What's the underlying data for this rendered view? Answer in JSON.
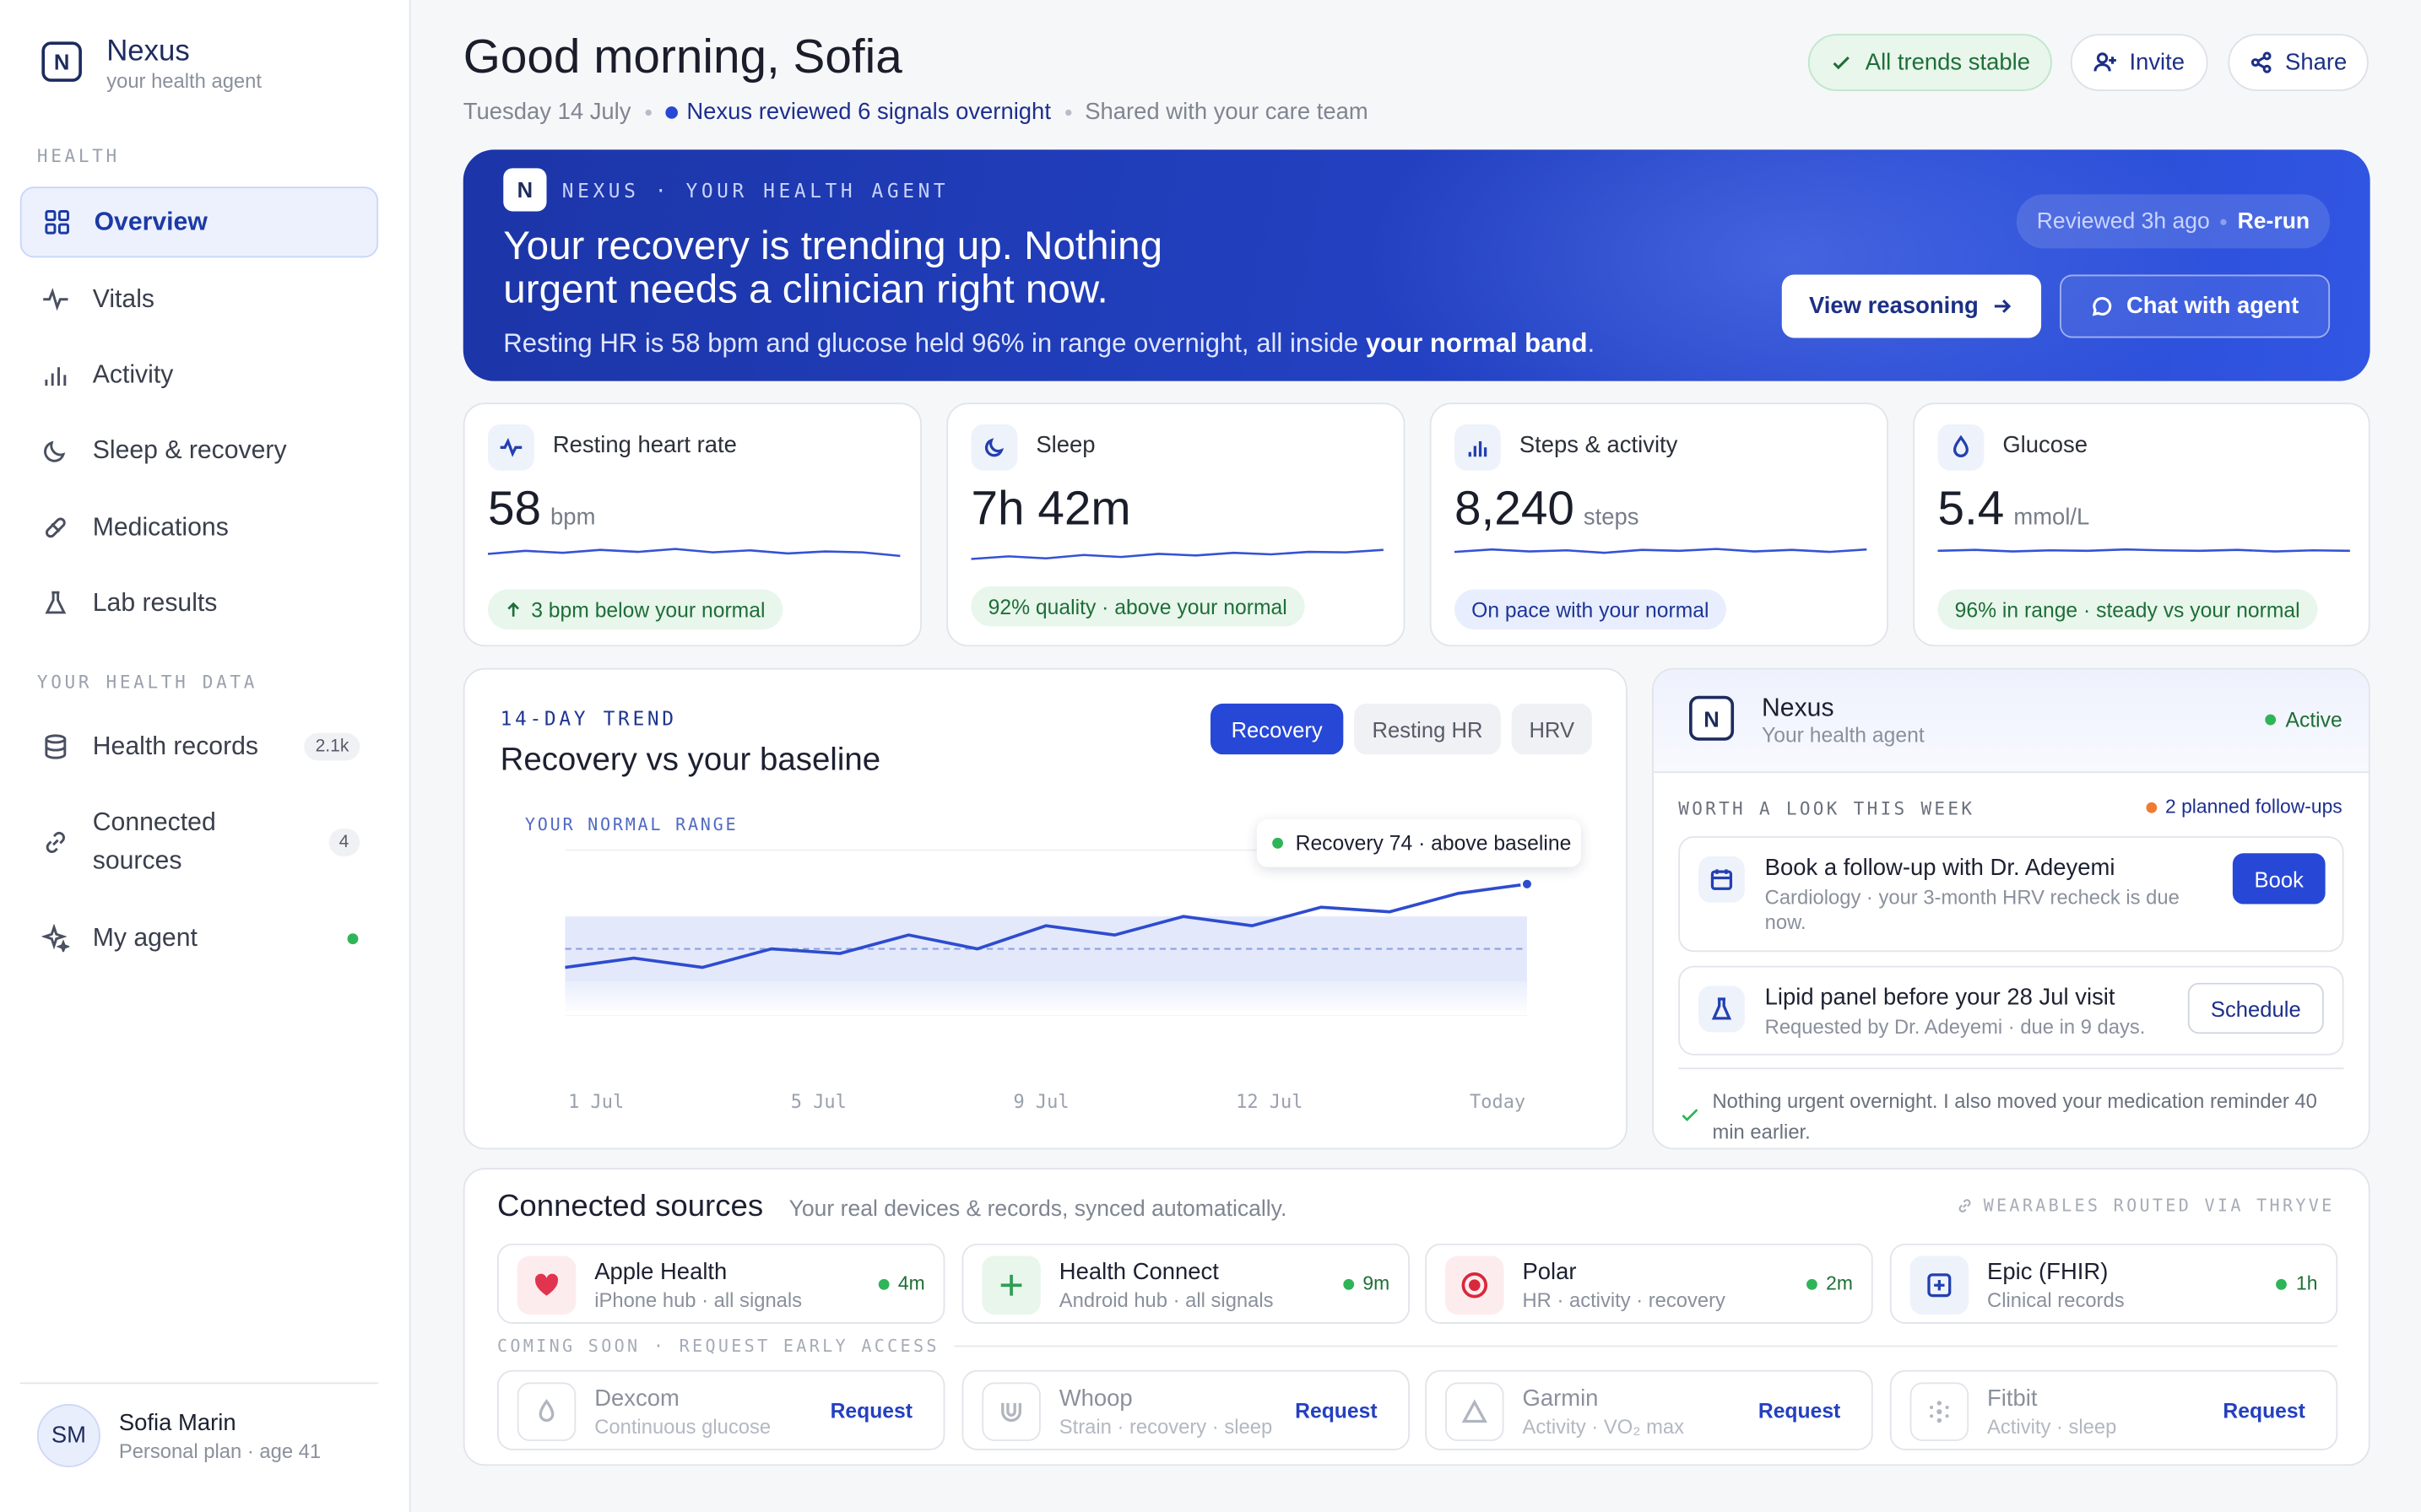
{
  "sidebar": {
    "brand": {
      "name": "Nexus",
      "tagline": "your health agent"
    },
    "sections": [
      {
        "title": "HEALTH",
        "items": [
          {
            "label": "Overview"
          },
          {
            "label": "Vitals"
          },
          {
            "label": "Activity"
          },
          {
            "label": "Sleep & recovery"
          },
          {
            "label": "Medications"
          },
          {
            "label": "Lab results"
          }
        ]
      },
      {
        "title": "YOUR HEALTH DATA",
        "items": [
          {
            "label": "Health records",
            "badge": "2.1k"
          },
          {
            "label": "Connected sources",
            "badge": 4
          },
          {
            "label": "My agent"
          }
        ]
      }
    ],
    "user": {
      "initials": "SM",
      "name": "Sofia Marin",
      "plan": "Personal plan · age 41"
    }
  },
  "header": {
    "title": "Good morning, Sofia",
    "date": "Tuesday 14 July",
    "review": "Nexus reviewed 6 signals overnight",
    "shared": "Shared with your care team",
    "status": "All trends stable",
    "buttons": [
      "Invite",
      "Share"
    ]
  },
  "hero": {
    "eyebrow": "NEXUS · YOUR HEALTH AGENT",
    "headline": "Your recovery is trending up. Nothing urgent needs a clinician right now.",
    "body_before": "Resting HR is 58 bpm and glucose held 96% in range overnight, all inside ",
    "body_strong": "your normal band",
    "body_after": ".",
    "reviewed": "Reviewed 3h ago",
    "rerun": "Re-run",
    "buttons": [
      "View reasoning",
      "Chat with agent"
    ]
  },
  "metrics": [
    {
      "label": "Resting heart rate",
      "value": "58",
      "unit": "bpm",
      "note": "3 bpm below your normal",
      "spark": [
        59,
        59.6,
        59.2,
        59.8,
        59.4,
        60,
        59.3,
        59.7,
        59.1,
        59.5,
        59.3,
        58.6
      ],
      "spark_ylim": [
        55,
        63
      ]
    },
    {
      "label": "Sleep",
      "value": "7h 42m",
      "note": "92% quality · above your normal",
      "spark": [
        58,
        58.5,
        58.1,
        58.8,
        58.4,
        59,
        58.7,
        59.2,
        58.9,
        59.4,
        59.3,
        59.8
      ],
      "spark_ylim": [
        55,
        63
      ]
    },
    {
      "label": "Steps & activity",
      "value": "8,240",
      "unit": "steps",
      "note": "On pace with your normal",
      "spark": [
        59.4,
        59.9,
        59.5,
        59.7,
        59.2,
        59.8,
        59.6,
        60,
        59.5,
        59.8,
        59.4,
        59.9
      ],
      "spark_ylim": [
        55,
        63
      ]
    },
    {
      "label": "Glucose",
      "value": "5.4",
      "unit": "mmol/L",
      "note": "96% in range · steady vs your normal",
      "spark": [
        59.6,
        59.8,
        59.5,
        59.7,
        59.6,
        59.9,
        59.7,
        59.6,
        59.8,
        59.5,
        59.7,
        59.6
      ],
      "spark_ylim": [
        55,
        63
      ]
    }
  ],
  "trend": {
    "eyebrow": "14-DAY TREND",
    "title": "Recovery vs your baseline",
    "tabs": [
      "Recovery",
      "Resting HR",
      "HRV"
    ],
    "range_label": "YOUR NORMAL RANGE",
    "tooltip": "Recovery 74 · above baseline",
    "x_labels": [
      "1 Jul",
      "5 Jul",
      "9 Jul",
      "12 Jul",
      "Today"
    ],
    "values": [
      56,
      58,
      56,
      60,
      59,
      63,
      60,
      65,
      63,
      67,
      65,
      69,
      68,
      72,
      74
    ],
    "normal_range": [
      53,
      67
    ],
    "baseline": 60,
    "ylim": [
      40,
      80
    ]
  },
  "agent": {
    "name": "Nexus",
    "subtitle": "Your health agent",
    "status": "Active",
    "section": "WORTH A LOOK THIS WEEK",
    "followups": "2 planned follow-ups",
    "tasks": [
      {
        "title": "Book a follow-up with Dr. Adeyemi",
        "detail": "Cardiology · your 3-month HRV recheck is due now.",
        "action": "Book"
      },
      {
        "title": "Lipid panel before your 28 Jul visit",
        "detail": "Requested by Dr. Adeyemi · due in 9 days.",
        "action": "Schedule"
      }
    ],
    "note": "Nothing urgent overnight. I also moved your medication reminder 40 min earlier."
  },
  "sources": {
    "title": "Connected sources",
    "subtitle": "Your real devices & records, synced automatically.",
    "routed": "WEARABLES ROUTED VIA THRYVE",
    "connected": [
      {
        "name": "Apple Health",
        "detail": "iPhone hub · all signals",
        "sync": "4m"
      },
      {
        "name": "Health Connect",
        "detail": "Android hub · all signals",
        "sync": "9m"
      },
      {
        "name": "Polar",
        "detail": "HR · activity · recovery",
        "sync": "2m"
      },
      {
        "name": "Epic (FHIR)",
        "detail": "Clinical records",
        "sync": "1h"
      }
    ],
    "soon_label": "COMING SOON · REQUEST EARLY ACCESS",
    "soon": [
      {
        "name": "Dexcom",
        "detail": "Continuous glucose",
        "action": "Request"
      },
      {
        "name": "Whoop",
        "detail": "Strain · recovery · sleep",
        "action": "Request"
      },
      {
        "name": "Garmin",
        "detail": "Activity · VO₂ max",
        "action": "Request"
      },
      {
        "name": "Fitbit",
        "detail": "Activity · sleep",
        "action": "Request"
      }
    ]
  }
}
